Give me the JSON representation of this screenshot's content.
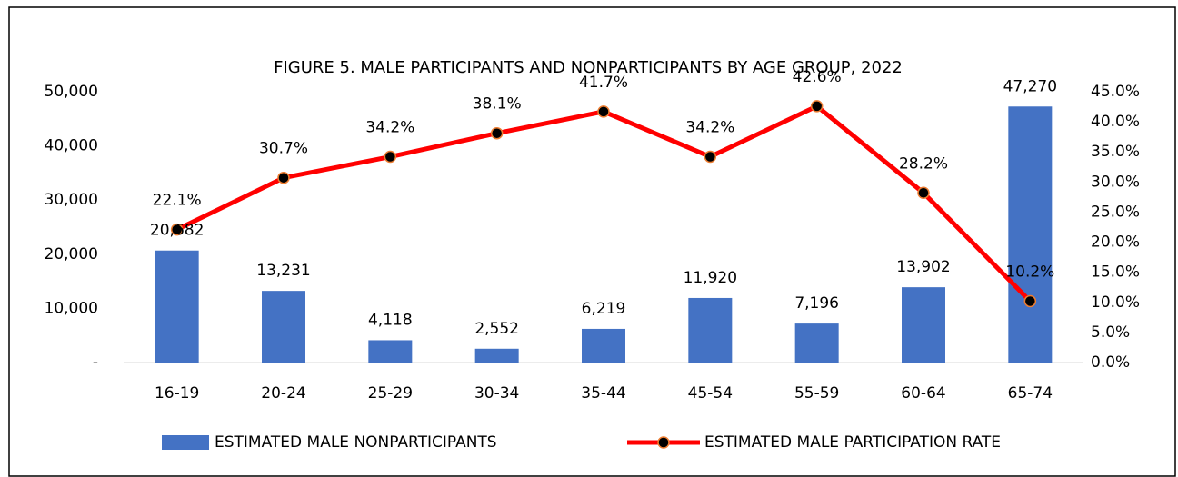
{
  "chart_data": {
    "type": "bar_line",
    "title": "FIGURE 5. MALE PARTICIPANTS AND NONPARTICIPANTS BY AGE GROUP, 2022",
    "categories": [
      "16-19",
      "20-24",
      "25-29",
      "30-34",
      "35-44",
      "45-54",
      "55-59",
      "60-64",
      "65-74"
    ],
    "series": [
      {
        "name": "ESTIMATED MALE NONPARTICIPANTS",
        "type": "bar",
        "color": "#4472c4",
        "axis": "y",
        "values": [
          20682,
          13231,
          4118,
          2552,
          6219,
          11920,
          7196,
          13902,
          47270
        ],
        "value_labels": [
          "20,682",
          "13,231",
          "4,118",
          "2,552",
          "6,219",
          "11,920",
          "7,196",
          "13,902",
          "47,270"
        ]
      },
      {
        "name": "ESTIMATED MALE PARTICIPATION RATE",
        "type": "line",
        "color": "#ff0000",
        "marker_color": "#000000",
        "marker_edge": "#ed7d31",
        "axis": "y2",
        "values": [
          22.1,
          30.7,
          34.2,
          38.1,
          41.7,
          34.2,
          42.6,
          28.2,
          10.2
        ],
        "value_labels": [
          "22.1%",
          "30.7%",
          "34.2%",
          "38.1%",
          "41.7%",
          "34.2%",
          "42.6%",
          "28.2%",
          "10.2%"
        ]
      }
    ],
    "ylim": [
      0,
      50000
    ],
    "yticks": [
      {
        "value": 0,
        "label": "-"
      },
      {
        "value": 10000,
        "label": "10,000"
      },
      {
        "value": 20000,
        "label": "20,000"
      },
      {
        "value": 30000,
        "label": "30,000"
      },
      {
        "value": 40000,
        "label": "40,000"
      },
      {
        "value": 50000,
        "label": "50,000"
      }
    ],
    "y2lim": [
      0,
      45
    ],
    "y2ticks": [
      {
        "value": 0,
        "label": "0.0%"
      },
      {
        "value": 5,
        "label": "5.0%"
      },
      {
        "value": 10,
        "label": "10.0%"
      },
      {
        "value": 15,
        "label": "15.0%"
      },
      {
        "value": 20,
        "label": "20.0%"
      },
      {
        "value": 25,
        "label": "25.0%"
      },
      {
        "value": 30,
        "label": "30.0%"
      },
      {
        "value": 35,
        "label": "35.0%"
      },
      {
        "value": 40,
        "label": "40.0%"
      },
      {
        "value": 45,
        "label": "45.0%"
      }
    ],
    "grid": false,
    "legend": "bottom"
  }
}
